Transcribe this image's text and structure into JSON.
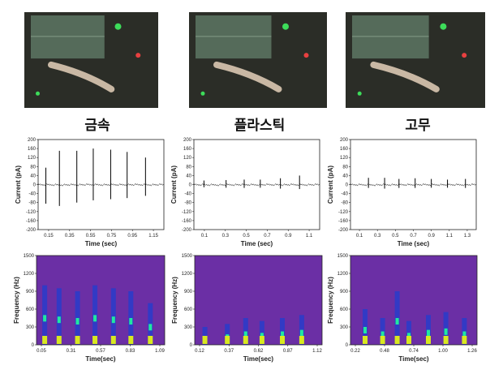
{
  "columns": [
    {
      "title": "금속",
      "photo": {
        "scope_color": "#556b5a",
        "glow_colors": [
          "#3ddc5a",
          "#e84040"
        ]
      },
      "waveform": {
        "x_ticks": [
          "0.15",
          "0.35",
          "0.55",
          "0.75",
          "0.95",
          "1.15"
        ],
        "spike_times": [
          0.08,
          0.22,
          0.4,
          0.57,
          0.75,
          0.92,
          1.11
        ],
        "spike_up": [
          75,
          150,
          150,
          160,
          155,
          145,
          120
        ],
        "spike_down": [
          -85,
          -95,
          -80,
          -70,
          -65,
          -60,
          -50
        ]
      },
      "spectrogram": {
        "x_ticks": [
          "0.05",
          "0.31",
          "0.57",
          "0.83",
          "1.09"
        ],
        "bursts": [
          0.08,
          0.22,
          0.4,
          0.57,
          0.75,
          0.92,
          1.11
        ],
        "burst_max_hz": [
          1000,
          950,
          900,
          1000,
          950,
          900,
          700
        ]
      }
    },
    {
      "title": "플라스틱",
      "photo": {
        "scope_color": "#556b5a",
        "glow_colors": [
          "#3ddc5a",
          "#e84040"
        ]
      },
      "waveform": {
        "x_ticks": [
          "0.1",
          "0.3",
          "0.5",
          "0.7",
          "0.9",
          "1.1"
        ],
        "spike_times": [
          0.1,
          0.32,
          0.5,
          0.66,
          0.86,
          1.05
        ],
        "spike_up": [
          18,
          20,
          22,
          22,
          28,
          40
        ],
        "spike_down": [
          -12,
          -14,
          -15,
          -14,
          -18,
          -20
        ]
      },
      "spectrogram": {
        "x_ticks": [
          "0.12",
          "0.37",
          "0.62",
          "0.87",
          "1.12"
        ],
        "bursts": [
          0.1,
          0.32,
          0.5,
          0.66,
          0.86,
          1.05
        ],
        "burst_max_hz": [
          300,
          350,
          450,
          400,
          450,
          500
        ]
      }
    },
    {
      "title": "고무",
      "photo": {
        "scope_color": "#556b5a",
        "glow_colors": [
          "#3ddc5a",
          "#e84040"
        ]
      },
      "waveform": {
        "x_ticks": [
          "0.1",
          "0.3",
          "0.5",
          "0.7",
          "0.9",
          "1.1",
          "1.3"
        ],
        "spike_times": [
          0.2,
          0.38,
          0.54,
          0.72,
          0.9,
          1.08,
          1.28
        ],
        "spike_up": [
          30,
          30,
          25,
          28,
          25,
          22,
          25
        ],
        "spike_down": [
          -15,
          -18,
          -15,
          -15,
          -14,
          -14,
          -15
        ]
      },
      "spectrogram": {
        "x_ticks": [
          "0.22",
          "0.48",
          "0.74",
          "1.00",
          "1.26"
        ],
        "bursts": [
          0.15,
          0.33,
          0.48,
          0.6,
          0.8,
          0.98,
          1.17
        ],
        "burst_max_hz": [
          600,
          450,
          900,
          400,
          500,
          550,
          450
        ]
      }
    }
  ],
  "waveform_axis": {
    "ylabel": "Current (pA)",
    "xlabel": "Time (sec)",
    "y_ticks": [
      "200",
      "160",
      "120",
      "80",
      "40",
      "0",
      "-40",
      "-80",
      "-120",
      "-160",
      "-200"
    ],
    "ylim": [
      -200,
      200
    ]
  },
  "spectrogram_axis": {
    "ylabel": "Frequency (Hz)",
    "xlabel": "Time(sec)",
    "y_ticks": [
      "1500",
      "1200",
      "900",
      "600",
      "300",
      "0"
    ],
    "ylim": [
      0,
      1500
    ]
  },
  "colors": {
    "spec_bg": "#6b2fa5",
    "spike": "#000000"
  }
}
